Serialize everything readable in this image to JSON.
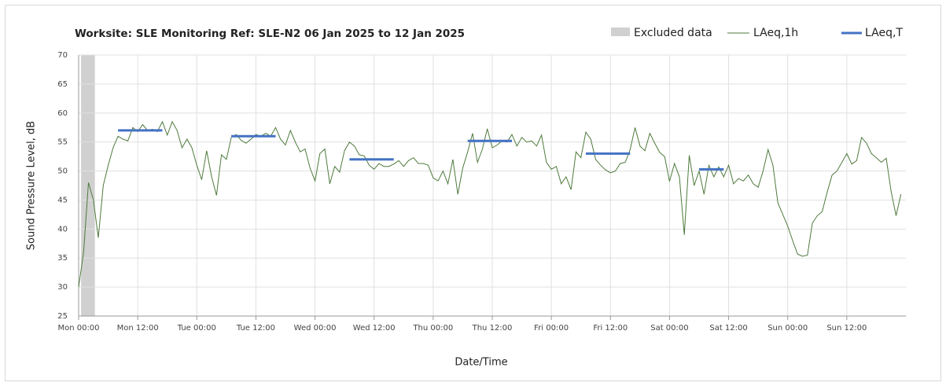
{
  "chart_data": {
    "type": "line",
    "title": "Worksite: SLE   Monitoring Ref: SLE-N2    06 Jan 2025 to 12 Jan 2025",
    "xlabel": "Date/Time",
    "ylabel": "Sound Pressure Level, dB",
    "xlim": [
      0,
      168
    ],
    "ylim": [
      25,
      70
    ],
    "yticks": [
      25,
      30,
      35,
      40,
      45,
      50,
      55,
      60,
      65,
      70
    ],
    "xticks": [
      {
        "value": 0,
        "label": "Mon 00:00"
      },
      {
        "value": 12,
        "label": "Mon 12:00"
      },
      {
        "value": 24,
        "label": "Tue 00:00"
      },
      {
        "value": 36,
        "label": "Tue 12:00"
      },
      {
        "value": 48,
        "label": "Wed 00:00"
      },
      {
        "value": 60,
        "label": "Wed 12:00"
      },
      {
        "value": 72,
        "label": "Thu 00:00"
      },
      {
        "value": 84,
        "label": "Thu 12:00"
      },
      {
        "value": 96,
        "label": "Fri 00:00"
      },
      {
        "value": 108,
        "label": "Fri 12:00"
      },
      {
        "value": 120,
        "label": "Sat 00:00"
      },
      {
        "value": 132,
        "label": "Sat 12:00"
      },
      {
        "value": 144,
        "label": "Sun 00:00"
      },
      {
        "value": 156,
        "label": "Sun 12:00"
      }
    ],
    "grid": true,
    "excluded": {
      "name": "Excluded data",
      "color": "#d0d0d0",
      "x": [
        0.5,
        3.3
      ]
    },
    "series": [
      {
        "name": "LAeq,1h",
        "color": "#4e7a3c",
        "x": [
          0,
          1,
          2,
          3,
          4,
          5,
          6,
          7,
          8,
          9,
          10,
          11,
          12,
          13,
          14,
          15,
          16,
          17,
          18,
          19,
          20,
          21,
          22,
          23,
          24,
          25,
          26,
          27,
          28,
          29,
          30,
          31,
          32,
          33,
          34,
          35,
          36,
          37,
          38,
          39,
          40,
          41,
          42,
          43,
          44,
          45,
          46,
          47,
          48,
          49,
          50,
          51,
          52,
          53,
          54,
          55,
          56,
          57,
          58,
          59,
          60,
          61,
          62,
          63,
          64,
          65,
          66,
          67,
          68,
          69,
          70,
          71,
          72,
          73,
          74,
          75,
          76,
          77,
          78,
          79,
          80,
          81,
          82,
          83,
          84,
          85,
          86,
          87,
          88,
          89,
          90,
          91,
          92,
          93,
          94,
          95,
          96,
          97,
          98,
          99,
          100,
          101,
          102,
          103,
          104,
          105,
          106,
          107,
          108,
          109,
          110,
          111,
          112,
          113,
          114,
          115,
          116,
          117,
          118,
          119,
          120,
          121,
          122,
          123,
          124,
          125,
          126,
          127,
          128,
          129,
          130,
          131,
          132,
          133,
          134,
          135,
          136,
          137,
          138,
          139,
          140,
          141,
          142,
          143,
          144,
          145,
          146,
          147,
          148,
          149,
          150,
          151,
          152,
          153,
          154,
          155,
          156,
          157,
          158,
          159,
          160,
          161,
          162,
          163,
          164,
          165,
          166,
          167
        ],
        "values": [
          30,
          36,
          48,
          45,
          38.5,
          47.5,
          51,
          54,
          56,
          55.5,
          55.2,
          57.5,
          56.8,
          58,
          57,
          57.2,
          56.8,
          58.5,
          56.2,
          58.5,
          57,
          54,
          55.5,
          54,
          51,
          48.5,
          53.5,
          49,
          45.8,
          52.8,
          52,
          55.8,
          56.3,
          55.3,
          54.8,
          55.5,
          56.3,
          56,
          56.5,
          56,
          57.5,
          55.5,
          54.5,
          57,
          55,
          53.3,
          53.8,
          50.5,
          48.3,
          53,
          53.8,
          47.8,
          50.8,
          49.8,
          53.5,
          55,
          54.3,
          52.8,
          52.6,
          51,
          50.3,
          51.3,
          50.8,
          50.8,
          51.2,
          51.8,
          50.8,
          51.8,
          52.3,
          51.3,
          51.3,
          51,
          48.8,
          48.3,
          50,
          47.8,
          52,
          46,
          50.5,
          53.3,
          56.5,
          51.5,
          53.8,
          57.3,
          54,
          54.5,
          55.2,
          55,
          56.3,
          54.3,
          55.8,
          55,
          55.2,
          54.3,
          56.2,
          51.5,
          50.3,
          50.8,
          47.8,
          49,
          46.8,
          53.3,
          52.3,
          56.7,
          55.5,
          52,
          51,
          50.2,
          49.7,
          50,
          51.3,
          51.5,
          53.7,
          57.5,
          54.3,
          53.5,
          56.5,
          54.8,
          53.2,
          52.5,
          48.2,
          51.3,
          49,
          39,
          52.7,
          47.5,
          50,
          46,
          51,
          49,
          50.7,
          49,
          51,
          47.8,
          48.7,
          48.3,
          49.3,
          47.8,
          47.2,
          50,
          53.7,
          51,
          44.5,
          42.5,
          40.5,
          38,
          35.7,
          35.3,
          35.5,
          41,
          42.3,
          43,
          46.3,
          49.3,
          50,
          51.5,
          53,
          51.2,
          51.8,
          55.8,
          54.8,
          53,
          52.3,
          51.5,
          52.2,
          46.5,
          42.3,
          46
        ]
      }
    ],
    "periods": {
      "name": "LAeq,T",
      "color": "#4472c4",
      "segments": [
        {
          "x": [
            8,
            17
          ],
          "value": 57
        },
        {
          "x": [
            31,
            40
          ],
          "value": 56
        },
        {
          "x": [
            55,
            64
          ],
          "value": 52
        },
        {
          "x": [
            79,
            88
          ],
          "value": 55.2
        },
        {
          "x": [
            103,
            112
          ],
          "value": 53
        },
        {
          "x": [
            126,
            131
          ],
          "value": 50.3
        }
      ]
    }
  }
}
